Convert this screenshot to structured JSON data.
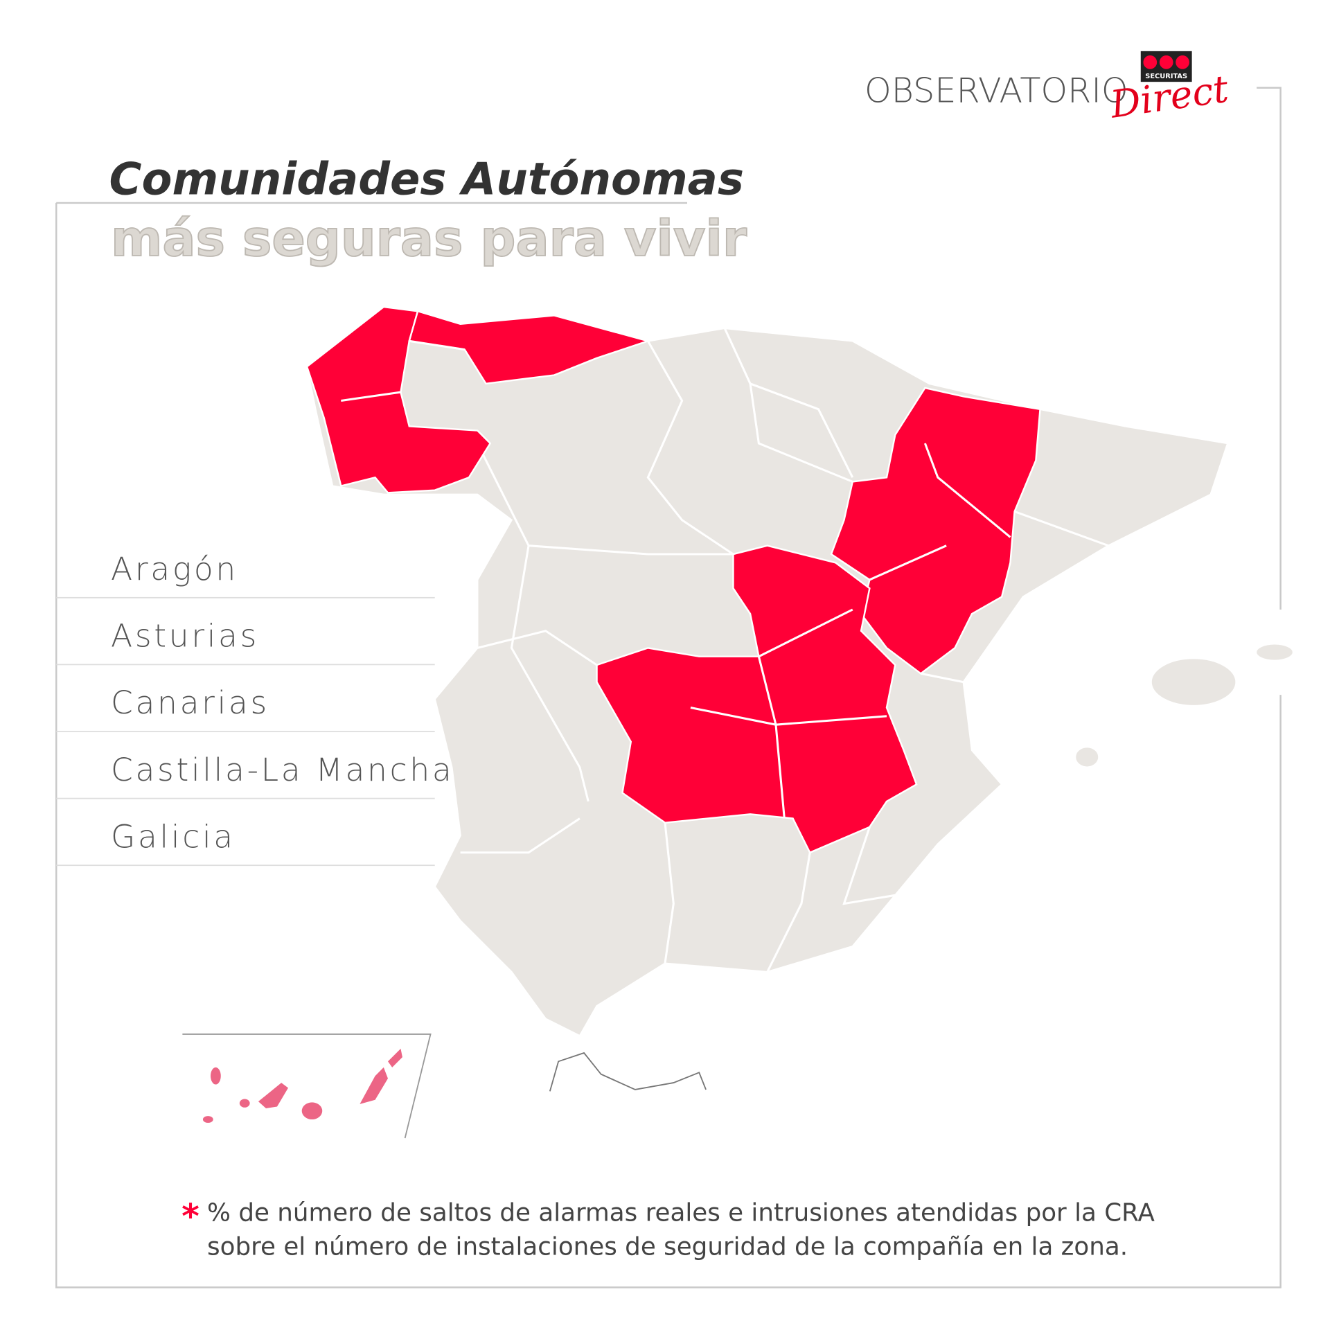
{
  "header": {
    "brand": "OBSERVATORIO",
    "logo_top": "SECURITAS",
    "logo_script": "Direct"
  },
  "title": {
    "line1": "Comunidades Autónomas",
    "line2": "más seguras para vivir"
  },
  "list": [
    "Aragón",
    "Asturias",
    "Canarias",
    "Castilla-La Mancha",
    "Galicia"
  ],
  "footnote": {
    "marker": "*",
    "lines": [
      "% de número de saltos de alarmas reales e intrusiones atendidas por la CRA",
      "sobre el número de instalaciones de seguridad de la compañía en la zona."
    ]
  }
}
